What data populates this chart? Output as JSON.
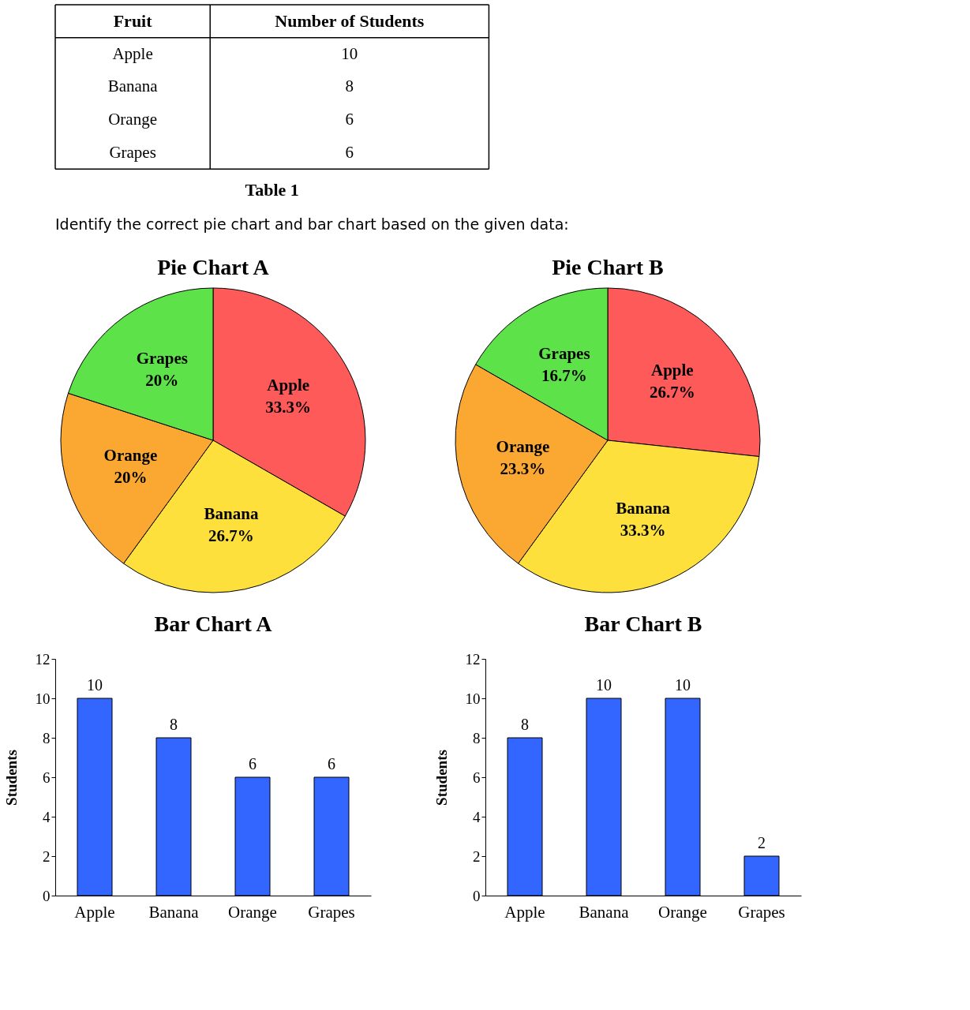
{
  "chart_data": [
    {
      "type": "other",
      "title": "Table 1",
      "xlabel": "Fruit",
      "ylabel": "Number of Students",
      "categories": [
        "Apple",
        "Banana",
        "Orange",
        "Grapes"
      ],
      "values": [
        10,
        8,
        6,
        6
      ],
      "data_labels": true,
      "annotations": [
        "Identify the correct pie chart and bar chart based on the given data:"
      ]
    },
    {
      "type": "pie",
      "title": "Pie Chart A",
      "categories": [
        "Apple",
        "Banana",
        "Orange",
        "Grapes"
      ],
      "values": [
        33.3,
        26.7,
        20,
        20
      ],
      "value_labels": [
        "33.3%",
        "26.7%",
        "20%",
        "20%"
      ],
      "colors": [
        "#fe5a5a",
        "#fde03c",
        "#fba833",
        "#5de24a"
      ]
    },
    {
      "type": "pie",
      "title": "Pie Chart B",
      "categories": [
        "Apple",
        "Banana",
        "Orange",
        "Grapes"
      ],
      "values": [
        26.7,
        33.3,
        23.3,
        16.7
      ],
      "value_labels": [
        "26.7%",
        "33.3%",
        "23.3%",
        "16.7%"
      ],
      "colors": [
        "#fe5a5a",
        "#fde03c",
        "#fba833",
        "#5de24a"
      ]
    },
    {
      "type": "bar",
      "title": "Bar Chart A",
      "ylabel": "Students",
      "categories": [
        "Apple",
        "Banana",
        "Orange",
        "Grapes"
      ],
      "values": [
        10,
        8,
        6,
        6
      ],
      "color": "#3366ff",
      "ylim": [
        0,
        12
      ],
      "yticks": [
        0,
        2,
        4,
        6,
        8,
        10,
        12
      ],
      "data_labels": true,
      "grid": false
    },
    {
      "type": "bar",
      "title": "Bar Chart B",
      "ylabel": "Students",
      "categories": [
        "Apple",
        "Banana",
        "Orange",
        "Grapes"
      ],
      "values": [
        8,
        10,
        10,
        2
      ],
      "color": "#3366ff",
      "ylim": [
        0,
        12
      ],
      "yticks": [
        0,
        2,
        4,
        6,
        8,
        10,
        12
      ],
      "data_labels": true,
      "grid": false
    }
  ]
}
